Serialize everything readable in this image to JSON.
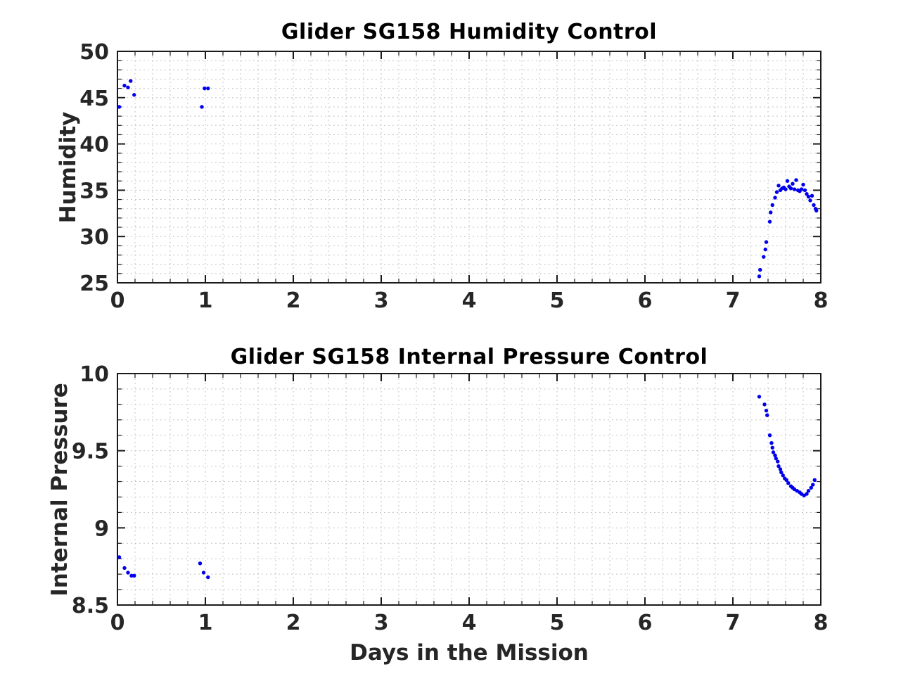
{
  "figure": {
    "background": "#ffffff",
    "axis_color": "#1a1a1a",
    "tick_label_color": "#262626",
    "grid_color": "#bdbdbd",
    "marker_color": "#0000ee"
  },
  "chart_data": [
    {
      "type": "scatter",
      "title": "Glider SG158 Humidity Control",
      "xlabel": "",
      "ylabel": "Humidity",
      "xlim": [
        0,
        8
      ],
      "ylim": [
        25,
        50
      ],
      "xticks": [
        0,
        1,
        2,
        3,
        4,
        5,
        6,
        7,
        8
      ],
      "xtick_labels": [
        "0",
        "1",
        "2",
        "3",
        "4",
        "5",
        "6",
        "7",
        "8"
      ],
      "yticks": [
        25,
        30,
        35,
        40,
        45,
        50
      ],
      "ytick_labels": [
        "25",
        "30",
        "35",
        "40",
        "45",
        "50"
      ],
      "minor_x_step": 0.2,
      "minor_y_step": 1,
      "grid": "dotted",
      "legend": null,
      "marker": {
        "shape": "circle",
        "color": "#0000ee",
        "size": 5.4
      },
      "points": [
        [
          0.02,
          44.0
        ],
        [
          0.08,
          46.3
        ],
        [
          0.12,
          46.1
        ],
        [
          0.15,
          46.8
        ],
        [
          0.19,
          45.3
        ],
        [
          0.96,
          44.0
        ],
        [
          0.99,
          46.0
        ],
        [
          1.03,
          46.0
        ],
        [
          7.3,
          25.7
        ],
        [
          7.31,
          26.4
        ],
        [
          7.35,
          27.8
        ],
        [
          7.37,
          28.6
        ],
        [
          7.38,
          29.4
        ],
        [
          7.42,
          31.6
        ],
        [
          7.43,
          32.6
        ],
        [
          7.45,
          33.4
        ],
        [
          7.48,
          34.2
        ],
        [
          7.5,
          34.8
        ],
        [
          7.52,
          35.5
        ],
        [
          7.54,
          35.0
        ],
        [
          7.56,
          35.2
        ],
        [
          7.58,
          35.3
        ],
        [
          7.6,
          35.1
        ],
        [
          7.62,
          36.0
        ],
        [
          7.64,
          35.4
        ],
        [
          7.66,
          35.2
        ],
        [
          7.68,
          35.7
        ],
        [
          7.7,
          35.1
        ],
        [
          7.72,
          36.1
        ],
        [
          7.74,
          35.0
        ],
        [
          7.76,
          34.9
        ],
        [
          7.78,
          35.1
        ],
        [
          7.8,
          35.6
        ],
        [
          7.82,
          35.0
        ],
        [
          7.84,
          34.6
        ],
        [
          7.86,
          34.3
        ],
        [
          7.88,
          33.9
        ],
        [
          7.9,
          34.4
        ],
        [
          7.92,
          33.4
        ],
        [
          7.94,
          33.0
        ],
        [
          7.95,
          32.8
        ]
      ]
    },
    {
      "type": "scatter",
      "title": "Glider SG158 Internal Pressure Control",
      "xlabel": "Days in the Mission",
      "ylabel": "Internal Pressure",
      "xlim": [
        0,
        8
      ],
      "ylim": [
        8.5,
        10
      ],
      "xticks": [
        0,
        1,
        2,
        3,
        4,
        5,
        6,
        7,
        8
      ],
      "xtick_labels": [
        "0",
        "1",
        "2",
        "3",
        "4",
        "5",
        "6",
        "7",
        "8"
      ],
      "yticks": [
        8.5,
        9,
        9.5,
        10
      ],
      "ytick_labels": [
        "8.5",
        "9",
        "9.5",
        "10"
      ],
      "minor_x_step": 0.2,
      "minor_y_step": 0.1,
      "grid": "dotted",
      "legend": null,
      "marker": {
        "shape": "circle",
        "color": "#0000ee",
        "size": 5.4
      },
      "points": [
        [
          0.02,
          8.81
        ],
        [
          0.08,
          8.74
        ],
        [
          0.12,
          8.71
        ],
        [
          0.16,
          8.69
        ],
        [
          0.19,
          8.69
        ],
        [
          0.94,
          8.77
        ],
        [
          0.98,
          8.71
        ],
        [
          1.03,
          8.68
        ],
        [
          7.3,
          9.85
        ],
        [
          7.36,
          9.8
        ],
        [
          7.38,
          9.76
        ],
        [
          7.39,
          9.73
        ],
        [
          7.42,
          9.6
        ],
        [
          7.44,
          9.55
        ],
        [
          7.45,
          9.52
        ],
        [
          7.46,
          9.49
        ],
        [
          7.48,
          9.47
        ],
        [
          7.49,
          9.45
        ],
        [
          7.51,
          9.43
        ],
        [
          7.52,
          9.4
        ],
        [
          7.54,
          9.38
        ],
        [
          7.55,
          9.36
        ],
        [
          7.57,
          9.34
        ],
        [
          7.59,
          9.32
        ],
        [
          7.61,
          9.31
        ],
        [
          7.63,
          9.29
        ],
        [
          7.66,
          9.27
        ],
        [
          7.68,
          9.26
        ],
        [
          7.7,
          9.25
        ],
        [
          7.73,
          9.24
        ],
        [
          7.76,
          9.23
        ],
        [
          7.78,
          9.22
        ],
        [
          7.81,
          9.21
        ],
        [
          7.84,
          9.22
        ],
        [
          7.86,
          9.24
        ],
        [
          7.89,
          9.26
        ],
        [
          7.91,
          9.28
        ],
        [
          7.93,
          9.31
        ]
      ]
    }
  ]
}
